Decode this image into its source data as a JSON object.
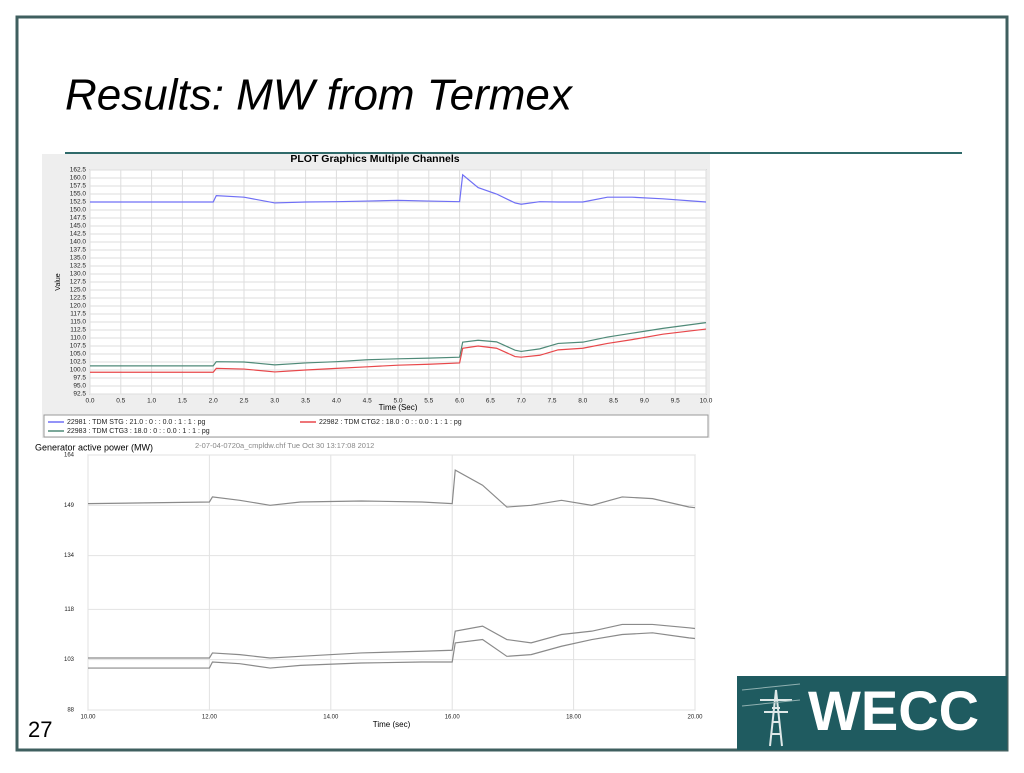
{
  "slide": {
    "title": "Results: MW from Termex",
    "page_number": 27,
    "logo": "WECC"
  },
  "chart_data": [
    {
      "type": "line",
      "title": "PLOT Graphics Multiple Channels",
      "x_label": "Time (Sec)",
      "y_label": "Value",
      "grid": true,
      "legend": "bottom",
      "x": [
        0,
        2.0,
        2.05,
        2.5,
        3.0,
        3.5,
        4.0,
        4.5,
        5.0,
        5.5,
        6.0,
        6.05,
        6.3,
        6.6,
        6.9,
        7.0,
        7.3,
        7.6,
        8.0,
        8.4,
        8.8,
        9.3,
        10.0
      ],
      "series": [
        {
          "name": "22981 : TDM STG : 21.0 : 0 : : 0.0 : 1 : 1 : pg",
          "color": "#6f6ff5",
          "values": [
            152.5,
            152.5,
            154.5,
            154,
            152.2,
            152.5,
            152.6,
            152.8,
            153,
            152.8,
            152.6,
            161,
            157,
            155,
            152.2,
            151.8,
            152.6,
            152.5,
            152.5,
            154,
            154,
            153.5,
            152.5
          ]
        },
        {
          "name": "22982 : TDM CTG2 : 18.0 : 0 : : 0.0 : 1 : 1 : pg",
          "color": "#e8474a",
          "values": [
            99.3,
            99.3,
            100.5,
            100.3,
            99.4,
            100,
            100.5,
            101,
            101.5,
            101.8,
            102.2,
            106.8,
            107.5,
            106.8,
            104.2,
            104,
            104.6,
            106.3,
            106.8,
            108.3,
            109.5,
            111.2,
            112.8
          ]
        },
        {
          "name": "22983 : TDM CTG3 : 18.0 : 0 : : 0.0 : 1 : 1 : pg",
          "color": "#4f8a78",
          "values": [
            101.3,
            101.3,
            102.6,
            102.5,
            101.6,
            102.2,
            102.6,
            103.2,
            103.5,
            103.7,
            104,
            108.7,
            109.3,
            108.8,
            106.2,
            105.8,
            106.6,
            108.3,
            108.7,
            110.3,
            111.5,
            113,
            114.8
          ]
        }
      ],
      "xlim": [
        0,
        10
      ],
      "ylim": [
        92.5,
        162.5
      ],
      "xticks": [
        {
          "value": 0,
          "label": "0.0"
        },
        0.5,
        {
          "value": 1,
          "label": "1.0"
        },
        1.5,
        {
          "value": 2,
          "label": "2.0"
        },
        2.5,
        {
          "value": 3,
          "label": "3.0"
        },
        3.5,
        {
          "value": 4,
          "label": "4.0"
        },
        4.5,
        {
          "value": 5,
          "label": "5.0"
        },
        5.5,
        {
          "value": 6,
          "label": "6.0"
        },
        6.5,
        {
          "value": 7,
          "label": "7.0"
        },
        7.5,
        {
          "value": 8,
          "label": "8.0"
        },
        8.5,
        {
          "value": 9,
          "label": "9.0"
        },
        9.5,
        {
          "value": 10,
          "label": "10.0"
        }
      ],
      "yticks": [
        92.5,
        {
          "value": 95,
          "label": "95.0"
        },
        97.5,
        {
          "value": 100,
          "label": "100.0"
        },
        102.5,
        {
          "value": 105,
          "label": "105.0"
        },
        107.5,
        {
          "value": 110,
          "label": "110.0"
        },
        112.5,
        {
          "value": 115,
          "label": "115.0"
        },
        117.5,
        {
          "value": 120,
          "label": "120.0"
        },
        122.5,
        {
          "value": 125,
          "label": "125.0"
        },
        127.5,
        {
          "value": 130,
          "label": "130.0"
        },
        132.5,
        {
          "value": 135,
          "label": "135.0"
        },
        137.5,
        {
          "value": 140,
          "label": "140.0"
        },
        142.5,
        {
          "value": 145,
          "label": "145.0"
        },
        147.5,
        {
          "value": 150,
          "label": "150.0"
        },
        152.5,
        {
          "value": 155,
          "label": "155.0"
        },
        157.5,
        {
          "value": 160,
          "label": "160.0"
        },
        162.5
      ]
    },
    {
      "type": "line",
      "title": "Generator active power (MW)",
      "x_label": "Time (sec)",
      "note": "2-07-04-0720a_cmpldw.chf Tue Oct 30 13:17:08 2012",
      "grid": true,
      "x": [
        10,
        12,
        12.05,
        12.5,
        13,
        13.5,
        14.5,
        15.5,
        16,
        16.05,
        16.5,
        16.9,
        17.3,
        17.8,
        18.3,
        18.8,
        19.3,
        19.9,
        20
      ],
      "series": [
        {
          "color": "#8a8a8a",
          "values": [
            149.5,
            150,
            151.5,
            150.5,
            149,
            150,
            150.3,
            150,
            149.5,
            159.5,
            155,
            148.5,
            149,
            150.5,
            149,
            151.5,
            151,
            148.5,
            148.3
          ]
        },
        {
          "color": "#8a8a8a",
          "values": [
            103.5,
            103.5,
            105,
            104.5,
            103.5,
            104,
            105,
            105.5,
            105.8,
            111.5,
            113,
            109,
            108,
            110.5,
            111.5,
            113.5,
            113.5,
            112.5,
            112.3
          ]
        },
        {
          "color": "#8a8a8a",
          "values": [
            100.5,
            100.5,
            102.3,
            101.8,
            100.5,
            101.3,
            102,
            102.3,
            102.3,
            108,
            109,
            104,
            104.5,
            107,
            109,
            110.5,
            111,
            109.5,
            109.3
          ]
        }
      ],
      "xlim": [
        10,
        20
      ],
      "ylim": [
        88,
        164
      ],
      "xticks": [
        {
          "value": 10,
          "label": "10.00"
        },
        {
          "value": 12,
          "label": "12.00"
        },
        {
          "value": 14,
          "label": "14.00"
        },
        {
          "value": 16,
          "label": "16.00"
        },
        {
          "value": 18,
          "label": "18.00"
        },
        {
          "value": 20,
          "label": "20.00"
        }
      ],
      "yticks": [
        88,
        103,
        118,
        134,
        149,
        164
      ]
    }
  ]
}
